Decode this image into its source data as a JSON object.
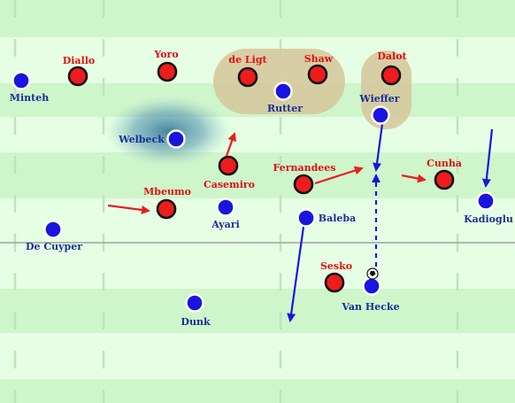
{
  "colors": {
    "pitch_light": "#e6ffe4",
    "pitch_dark": "#cff5cb",
    "pitch_line": "#bfe3bb",
    "team_red": "#ee1c1c",
    "team_blue": "#1a14e0",
    "red_text": "#e01010",
    "blue_text": "#1b2f98",
    "highlight": "#d6c79c",
    "shadow": "#3f7f99"
  },
  "players": [
    {
      "name": "Diallo",
      "team": "red"
    },
    {
      "name": "Yoro",
      "team": "red"
    },
    {
      "name": "de Ligt",
      "team": "red"
    },
    {
      "name": "Shaw",
      "team": "red"
    },
    {
      "name": "Dalot",
      "team": "red"
    },
    {
      "name": "Casemiro",
      "team": "red"
    },
    {
      "name": "Fernandees",
      "team": "red"
    },
    {
      "name": "Cunha",
      "team": "red"
    },
    {
      "name": "Mbeumo",
      "team": "red"
    },
    {
      "name": "Sesko",
      "team": "red"
    },
    {
      "name": "Minteh",
      "team": "blue"
    },
    {
      "name": "Rutter",
      "team": "blue"
    },
    {
      "name": "Wieffer",
      "team": "blue"
    },
    {
      "name": "Welbeck",
      "team": "blue"
    },
    {
      "name": "Kadioglu",
      "team": "blue"
    },
    {
      "name": "Ayari",
      "team": "blue"
    },
    {
      "name": "Baleba",
      "team": "blue"
    },
    {
      "name": "De Cuyper",
      "team": "blue"
    },
    {
      "name": "Van Hecke",
      "team": "blue"
    },
    {
      "name": "Dunk",
      "team": "blue"
    }
  ],
  "arrows": [
    {
      "type": "player-run",
      "team": "red"
    },
    {
      "type": "player-run",
      "team": "red"
    },
    {
      "type": "player-run",
      "team": "red"
    },
    {
      "type": "player-run",
      "team": "red"
    },
    {
      "type": "player-run",
      "team": "blue"
    },
    {
      "type": "player-run",
      "team": "blue"
    },
    {
      "type": "player-run",
      "team": "blue"
    },
    {
      "type": "pass",
      "team": "blue"
    }
  ],
  "ball": {
    "icon": "football-icon"
  }
}
